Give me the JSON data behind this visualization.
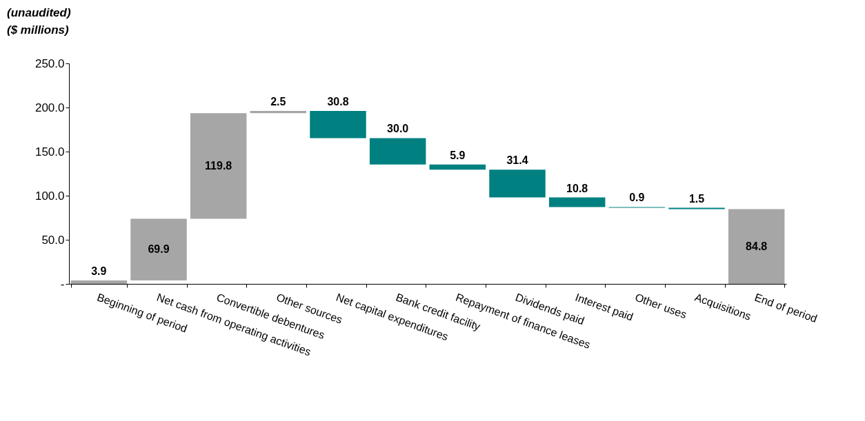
{
  "chart_data": {
    "type": "bar",
    "title": "(unaudited)",
    "subtitle": "($ millions)",
    "categories": [
      "Beginning of period",
      "Net cash from operating activities",
      "Convertible debentures",
      "Other sources",
      "Net capital expenditures",
      "Bank credit facility",
      "Repayment of finance leases",
      "Dividends paid",
      "Interest paid",
      "Other uses",
      "Acquisitions",
      "End of period"
    ],
    "values": [
      3.9,
      69.9,
      119.8,
      2.5,
      30.8,
      30.0,
      5.9,
      31.4,
      10.8,
      0.9,
      1.5,
      84.8
    ],
    "base": [
      0,
      3.9,
      73.8,
      193.6,
      165.3,
      135.3,
      129.4,
      98.0,
      87.2,
      86.3,
      84.8,
      0
    ],
    "colors": [
      "#a6a6a6",
      "#a6a6a6",
      "#a6a6a6",
      "#a6a6a6",
      "#008080",
      "#008080",
      "#008080",
      "#008080",
      "#008080",
      "#008080",
      "#008080",
      "#a6a6a6"
    ],
    "ylim": [
      0,
      250
    ],
    "yticks": [
      {
        "value": 0,
        "label": "-"
      },
      {
        "value": 50,
        "label": "50.0"
      },
      {
        "value": 100,
        "label": "100.0"
      },
      {
        "value": 150,
        "label": "150.0"
      },
      {
        "value": 200,
        "label": "200.0"
      },
      {
        "value": 250,
        "label": "250.0"
      }
    ],
    "value_labels": [
      "3.9",
      "69.9",
      "119.8",
      "2.5",
      "30.8",
      "30.0",
      "5.9",
      "31.4",
      "10.8",
      "0.9",
      "1.5",
      "84.8"
    ]
  }
}
